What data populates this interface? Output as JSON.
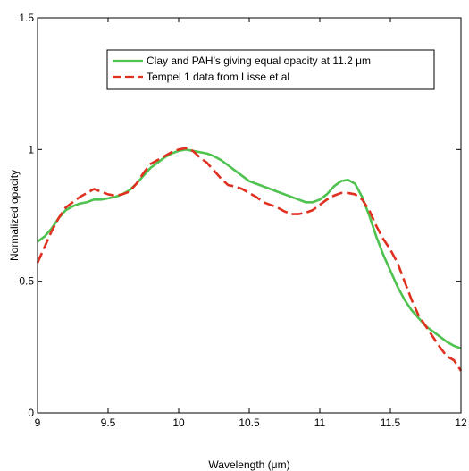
{
  "chart_data": {
    "type": "line",
    "title": "",
    "xlabel": "Wavelength (μm)",
    "ylabel": "Normalized opacity",
    "xlim": [
      9,
      12
    ],
    "ylim": [
      0,
      1.5
    ],
    "xticks": [
      9,
      9.5,
      10,
      10.5,
      11,
      11.5,
      12
    ],
    "xtick_labels": [
      "9",
      "9.5",
      "10",
      "10.5",
      "11",
      "11.5",
      "12"
    ],
    "yticks": [
      0,
      0.5,
      1,
      1.5
    ],
    "ytick_labels": [
      "0",
      "0.5",
      "1",
      "1.5"
    ],
    "grid": false,
    "legend_position": "top-right",
    "series": [
      {
        "name": "Clay and PAH’s giving equal opacity at 11.2 μm",
        "color": "#4fc24f",
        "style": "solid",
        "points": [
          [
            9.0,
            0.65
          ],
          [
            9.05,
            0.67
          ],
          [
            9.1,
            0.7
          ],
          [
            9.15,
            0.74
          ],
          [
            9.2,
            0.77
          ],
          [
            9.25,
            0.785
          ],
          [
            9.3,
            0.795
          ],
          [
            9.35,
            0.8
          ],
          [
            9.4,
            0.81
          ],
          [
            9.45,
            0.81
          ],
          [
            9.5,
            0.815
          ],
          [
            9.55,
            0.82
          ],
          [
            9.6,
            0.83
          ],
          [
            9.65,
            0.845
          ],
          [
            9.7,
            0.87
          ],
          [
            9.75,
            0.9
          ],
          [
            9.8,
            0.93
          ],
          [
            9.85,
            0.95
          ],
          [
            9.9,
            0.97
          ],
          [
            9.95,
            0.985
          ],
          [
            10.0,
            0.995
          ],
          [
            10.05,
            1.0
          ],
          [
            10.1,
            0.995
          ],
          [
            10.15,
            0.99
          ],
          [
            10.2,
            0.985
          ],
          [
            10.25,
            0.975
          ],
          [
            10.3,
            0.96
          ],
          [
            10.35,
            0.94
          ],
          [
            10.4,
            0.92
          ],
          [
            10.45,
            0.9
          ],
          [
            10.5,
            0.88
          ],
          [
            10.55,
            0.87
          ],
          [
            10.6,
            0.86
          ],
          [
            10.65,
            0.85
          ],
          [
            10.7,
            0.84
          ],
          [
            10.75,
            0.83
          ],
          [
            10.8,
            0.82
          ],
          [
            10.85,
            0.81
          ],
          [
            10.9,
            0.8
          ],
          [
            10.95,
            0.8
          ],
          [
            11.0,
            0.81
          ],
          [
            11.05,
            0.83
          ],
          [
            11.1,
            0.86
          ],
          [
            11.15,
            0.88
          ],
          [
            11.2,
            0.885
          ],
          [
            11.25,
            0.87
          ],
          [
            11.3,
            0.82
          ],
          [
            11.35,
            0.75
          ],
          [
            11.4,
            0.67
          ],
          [
            11.45,
            0.6
          ],
          [
            11.5,
            0.54
          ],
          [
            11.55,
            0.48
          ],
          [
            11.6,
            0.43
          ],
          [
            11.65,
            0.39
          ],
          [
            11.7,
            0.36
          ],
          [
            11.75,
            0.33
          ],
          [
            11.8,
            0.31
          ],
          [
            11.85,
            0.29
          ],
          [
            11.9,
            0.27
          ],
          [
            11.95,
            0.255
          ],
          [
            12.0,
            0.245
          ]
        ]
      },
      {
        "name": "Tempel 1 data from Lisse et al",
        "color": "#e03020",
        "style": "dashed",
        "points": [
          [
            9.0,
            0.57
          ],
          [
            9.05,
            0.63
          ],
          [
            9.1,
            0.69
          ],
          [
            9.15,
            0.74
          ],
          [
            9.2,
            0.78
          ],
          [
            9.25,
            0.8
          ],
          [
            9.3,
            0.82
          ],
          [
            9.35,
            0.835
          ],
          [
            9.4,
            0.85
          ],
          [
            9.45,
            0.84
          ],
          [
            9.5,
            0.83
          ],
          [
            9.55,
            0.825
          ],
          [
            9.6,
            0.83
          ],
          [
            9.65,
            0.84
          ],
          [
            9.7,
            0.87
          ],
          [
            9.75,
            0.91
          ],
          [
            9.8,
            0.945
          ],
          [
            9.85,
            0.96
          ],
          [
            9.9,
            0.975
          ],
          [
            9.95,
            0.99
          ],
          [
            10.0,
            1.0
          ],
          [
            10.05,
            1.005
          ],
          [
            10.1,
            0.995
          ],
          [
            10.15,
            0.97
          ],
          [
            10.2,
            0.95
          ],
          [
            10.25,
            0.92
          ],
          [
            10.3,
            0.89
          ],
          [
            10.35,
            0.865
          ],
          [
            10.4,
            0.86
          ],
          [
            10.45,
            0.85
          ],
          [
            10.5,
            0.835
          ],
          [
            10.55,
            0.82
          ],
          [
            10.6,
            0.8
          ],
          [
            10.65,
            0.79
          ],
          [
            10.7,
            0.78
          ],
          [
            10.75,
            0.765
          ],
          [
            10.8,
            0.755
          ],
          [
            10.85,
            0.755
          ],
          [
            10.9,
            0.76
          ],
          [
            10.95,
            0.77
          ],
          [
            11.0,
            0.79
          ],
          [
            11.05,
            0.81
          ],
          [
            11.1,
            0.825
          ],
          [
            11.15,
            0.835
          ],
          [
            11.2,
            0.835
          ],
          [
            11.25,
            0.83
          ],
          [
            11.3,
            0.81
          ],
          [
            11.35,
            0.77
          ],
          [
            11.4,
            0.71
          ],
          [
            11.45,
            0.66
          ],
          [
            11.5,
            0.62
          ],
          [
            11.55,
            0.57
          ],
          [
            11.6,
            0.5
          ],
          [
            11.65,
            0.43
          ],
          [
            11.7,
            0.37
          ],
          [
            11.75,
            0.33
          ],
          [
            11.8,
            0.29
          ],
          [
            11.85,
            0.25
          ],
          [
            11.9,
            0.215
          ],
          [
            11.95,
            0.2
          ],
          [
            12.0,
            0.16
          ]
        ]
      }
    ]
  }
}
